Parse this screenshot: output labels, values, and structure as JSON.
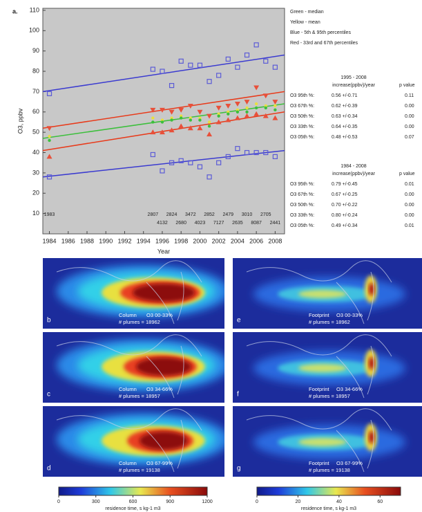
{
  "chart_data": {
    "type": "scatter",
    "panel_label": "a.",
    "xlabel": "Year",
    "ylabel": "O3, ppbv",
    "xlim": [
      1983.3,
      2009
    ],
    "ylim": [
      0,
      111
    ],
    "xticks": [
      1984,
      1986,
      1988,
      1990,
      1992,
      1994,
      1996,
      1998,
      2000,
      2002,
      2004,
      2006,
      2008
    ],
    "yticks": [
      10,
      20,
      30,
      40,
      50,
      60,
      70,
      80,
      90,
      100,
      110
    ],
    "x": [
      1984,
      1995,
      1996,
      1997,
      1998,
      1999,
      2000,
      2001,
      2002,
      2003,
      2004,
      2005,
      2006,
      2007,
      2008
    ],
    "series": [
      {
        "name": "95th",
        "color": "#5b5bd6",
        "marker": "square",
        "values": [
          69,
          81,
          80,
          73,
          85,
          83,
          83,
          75,
          78,
          86,
          82,
          88,
          93,
          85,
          82
        ]
      },
      {
        "name": "67th",
        "color": "#e8503a",
        "marker": "down",
        "values": [
          52,
          61,
          61,
          60,
          61,
          63,
          60,
          58,
          62,
          63,
          64,
          65,
          72,
          68,
          65
        ]
      },
      {
        "name": "mean",
        "color": "#e8e040",
        "marker": "dot",
        "values": [
          48,
          57,
          56,
          57,
          58,
          57,
          57,
          55,
          59,
          60,
          61,
          62,
          64,
          63,
          63
        ]
      },
      {
        "name": "median",
        "color": "#3cbf3c",
        "marker": "dot",
        "values": [
          46,
          55,
          55,
          56,
          57,
          56,
          56,
          53,
          58,
          59,
          60,
          60,
          62,
          62,
          61
        ]
      },
      {
        "name": "33rd",
        "color": "#e8503a",
        "marker": "up",
        "values": [
          38,
          50,
          50,
          51,
          53,
          52,
          52,
          49,
          55,
          56,
          57,
          58,
          59,
          58,
          57
        ]
      },
      {
        "name": "5th",
        "color": "#5b5bd6",
        "marker": "square",
        "values": [
          28,
          39,
          31,
          35,
          36,
          35,
          33,
          28,
          35,
          38,
          42,
          40,
          40,
          40,
          38
        ]
      }
    ],
    "trend_lines": [
      {
        "color": "#3a3ad0",
        "x": [
          1983.3,
          2009
        ],
        "values": [
          70,
          88
        ]
      },
      {
        "color": "#e83a1a",
        "x": [
          1983.3,
          2009
        ],
        "values": [
          52,
          70
        ]
      },
      {
        "color": "#3cbf3c",
        "x": [
          1983.3,
          2009
        ],
        "values": [
          47,
          64
        ]
      },
      {
        "color": "#e83a1a",
        "x": [
          1983.3,
          2009
        ],
        "values": [
          41,
          60
        ]
      },
      {
        "color": "#3a3ad0",
        "x": [
          1983.3,
          2009
        ],
        "values": [
          28,
          41
        ]
      }
    ],
    "counts_top": {
      "x": [
        1984,
        1995,
        1997,
        1999,
        2001,
        2003,
        2005,
        2007
      ],
      "labels": [
        "1983",
        "2807",
        "2824",
        "3472",
        "2852",
        "2479",
        "3010",
        "2705"
      ]
    },
    "counts_bottom": {
      "x": [
        1996,
        1998,
        2000,
        2002,
        2004,
        2006,
        2008
      ],
      "labels": [
        "4132",
        "2680",
        "4023",
        "7127",
        "2635",
        "8087",
        "2441"
      ]
    }
  },
  "legend_notes": [
    "Green - median",
    "Yellow - mean",
    "Blue - 5th & 95th percentiles",
    "Red - 33rd and 67th percentiles"
  ],
  "tables": [
    {
      "title": "1995 - 2008",
      "headers": [
        "increase(ppbv)/year",
        "p value"
      ],
      "rows": [
        [
          "O3 95th %:",
          "0.56 +/-0.71",
          "0.11"
        ],
        [
          "O3 67th %:",
          "0.62 +/-0.39",
          "0.00"
        ],
        [
          "O3 50th %:",
          "0.63 +/-0.34",
          "0.00"
        ],
        [
          "O3 33th %:",
          "0.64 +/-0.35",
          "0.00"
        ],
        [
          "O3 05th %:",
          "0.48 +/-0.53",
          "0.07"
        ]
      ]
    },
    {
      "title": "1984 - 2008",
      "headers": [
        "increase(ppbv)/year",
        "p value"
      ],
      "rows": [
        [
          "O3 95th %:",
          "0.79 +/-0.45",
          "0.01"
        ],
        [
          "O3 67th %:",
          "0.67 +/-0.25",
          "0.00"
        ],
        [
          "O3 50th %:",
          "0.70 +/-0.22",
          "0.00"
        ],
        [
          "O3 33th %:",
          "0.80 +/-0.24",
          "0.00"
        ],
        [
          "O3 05th %:",
          "0.49 +/-0.34",
          "0.01"
        ]
      ]
    }
  ],
  "maps": [
    {
      "letter": "b",
      "kind": "Column",
      "bin": "O3 00-33%",
      "plumes": "# plumes = 18962"
    },
    {
      "letter": "e",
      "kind": "Footprint",
      "bin": "O3 00-33%",
      "plumes": "# plumes = 18962"
    },
    {
      "letter": "c",
      "kind": "Column",
      "bin": "O3 34-66%",
      "plumes": "# plumes = 18957"
    },
    {
      "letter": "f",
      "kind": "Footprint",
      "bin": "O3 34-66%",
      "plumes": "# plumes = 18957"
    },
    {
      "letter": "d",
      "kind": "Column",
      "bin": "O3 67-99%",
      "plumes": "# plumes = 19138"
    },
    {
      "letter": "g",
      "kind": "Footprint",
      "bin": "O3 67-99%",
      "plumes": "# plumes = 19138"
    }
  ],
  "colorbars": [
    {
      "lim": [
        0,
        1200
      ],
      "ticks": [
        0,
        300,
        600,
        900,
        1200
      ],
      "label": "residence time, s kg-1 m3"
    },
    {
      "lim": [
        0,
        70
      ],
      "ticks": [
        0,
        20,
        40,
        60
      ],
      "label": "residence time, s kg-1 m3"
    }
  ]
}
